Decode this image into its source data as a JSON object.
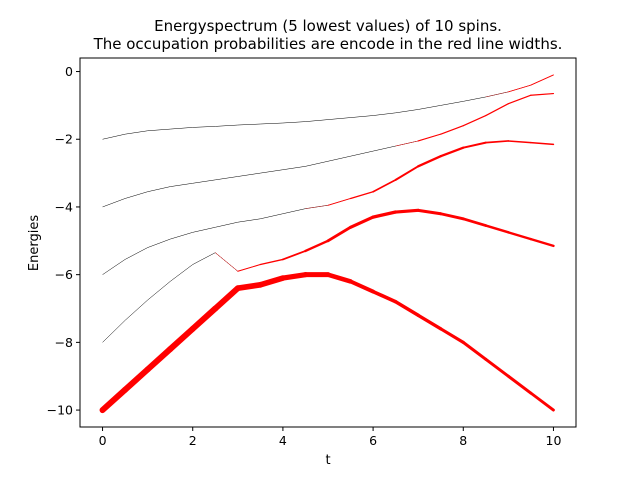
{
  "chart_data": {
    "type": "line",
    "title_line1": "Energyspectrum (5 lowest values) of 10 spins.",
    "title_line2": "The occupation probabilities are encode in the red line widths.",
    "xlabel": "t",
    "ylabel": "Energies",
    "xlim": [
      -0.5,
      10.5
    ],
    "ylim": [
      -10.5,
      0.4
    ],
    "xticks": [
      0,
      2,
      4,
      6,
      8,
      10
    ],
    "yticks": [
      0,
      -2,
      -4,
      -6,
      -8,
      -10
    ],
    "xtick_labels": [
      "0",
      "2",
      "4",
      "6",
      "8",
      "10"
    ],
    "ytick_labels": [
      "0",
      "−2",
      "−4",
      "−6",
      "−8",
      "−10"
    ],
    "line_color": "#000000",
    "occupation_color": "#ff0000",
    "grid": false,
    "series": [
      {
        "x": [
          0,
          0.5,
          1,
          1.5,
          2,
          2.5,
          3,
          3.5,
          4,
          4.5,
          5,
          5.5,
          6,
          6.5,
          7,
          7.5,
          8,
          8.5,
          9,
          9.5,
          10
        ],
        "y": [
          -10,
          -9.4,
          -8.8,
          -8.2,
          -7.6,
          -7.0,
          -6.4,
          -6.3,
          -6.1,
          -6.0,
          -6.0,
          -6.2,
          -6.5,
          -6.8,
          -7.2,
          -7.6,
          -8.0,
          -8.5,
          -9.0,
          -9.5,
          -10.0
        ],
        "occupation": [
          1,
          1,
          1,
          1,
          1,
          1,
          0.97,
          0.95,
          0.9,
          0.85,
          0.8,
          0.7,
          0.6,
          0.6,
          0.55,
          0.55,
          0.5,
          0.5,
          0.5,
          0.5,
          0.45
        ]
      },
      {
        "x": [
          0,
          0.5,
          1,
          1.5,
          2,
          2.5,
          3,
          3.5,
          4,
          4.5,
          5,
          5.5,
          6,
          6.5,
          7,
          7.5,
          8,
          8.5,
          9,
          9.5,
          10
        ],
        "y": [
          -8,
          -7.35,
          -6.75,
          -6.2,
          -5.7,
          -5.35,
          -5.9,
          -5.7,
          -5.55,
          -5.3,
          -5.0,
          -4.6,
          -4.3,
          -4.15,
          -4.1,
          -4.2,
          -4.35,
          -4.55,
          -4.75,
          -4.95,
          -5.15
        ],
        "occupation": [
          0,
          0,
          0,
          0,
          0,
          0,
          0.15,
          0.2,
          0.25,
          0.35,
          0.45,
          0.5,
          0.55,
          0.55,
          0.5,
          0.5,
          0.45,
          0.45,
          0.4,
          0.4,
          0.4
        ]
      },
      {
        "x": [
          0,
          0.5,
          1,
          1.5,
          2,
          2.5,
          3,
          3.5,
          4,
          4.5,
          5,
          5.5,
          6,
          6.5,
          7,
          7.5,
          8,
          8.5,
          9,
          9.5,
          10
        ],
        "y": [
          -6,
          -5.55,
          -5.2,
          -4.95,
          -4.75,
          -4.6,
          -4.45,
          -4.35,
          -4.2,
          -4.05,
          -3.95,
          -3.75,
          -3.55,
          -3.2,
          -2.8,
          -2.5,
          -2.25,
          -2.1,
          -2.05,
          -2.1,
          -2.15
        ],
        "occupation": [
          0,
          0,
          0,
          0,
          0,
          0,
          0,
          0,
          0,
          0,
          0.1,
          0.2,
          0.25,
          0.3,
          0.35,
          0.4,
          0.35,
          0.3,
          0.25,
          0.25,
          0.25
        ]
      },
      {
        "x": [
          0,
          0.5,
          1,
          1.5,
          2,
          2.5,
          3,
          3.5,
          4,
          4.5,
          5,
          5.5,
          6,
          6.5,
          7,
          7.5,
          8,
          8.5,
          9,
          9.5,
          10
        ],
        "y": [
          -4,
          -3.75,
          -3.55,
          -3.4,
          -3.3,
          -3.2,
          -3.1,
          -3.0,
          -2.9,
          -2.8,
          -2.65,
          -2.5,
          -2.35,
          -2.2,
          -2.05,
          -1.85,
          -1.6,
          -1.3,
          -0.95,
          -0.7,
          -0.65
        ],
        "occupation": [
          0,
          0,
          0,
          0,
          0,
          0,
          0,
          0,
          0,
          0,
          0,
          0,
          0,
          0,
          0.15,
          0.2,
          0.2,
          0.2,
          0.2,
          0.2,
          0.2
        ]
      },
      {
        "x": [
          0,
          0.5,
          1,
          1.5,
          2,
          2.5,
          3,
          3.5,
          4,
          4.5,
          5,
          5.5,
          6,
          6.5,
          7,
          7.5,
          8,
          8.5,
          9,
          9.5,
          10
        ],
        "y": [
          -2,
          -1.85,
          -1.75,
          -1.7,
          -1.65,
          -1.62,
          -1.58,
          -1.55,
          -1.52,
          -1.48,
          -1.42,
          -1.36,
          -1.3,
          -1.22,
          -1.12,
          -1.0,
          -0.88,
          -0.75,
          -0.6,
          -0.4,
          -0.1
        ],
        "occupation": [
          0,
          0,
          0,
          0,
          0,
          0,
          0,
          0,
          0,
          0,
          0,
          0,
          0,
          0,
          0,
          0,
          0,
          0,
          0.1,
          0.15,
          0.15
        ]
      }
    ]
  }
}
